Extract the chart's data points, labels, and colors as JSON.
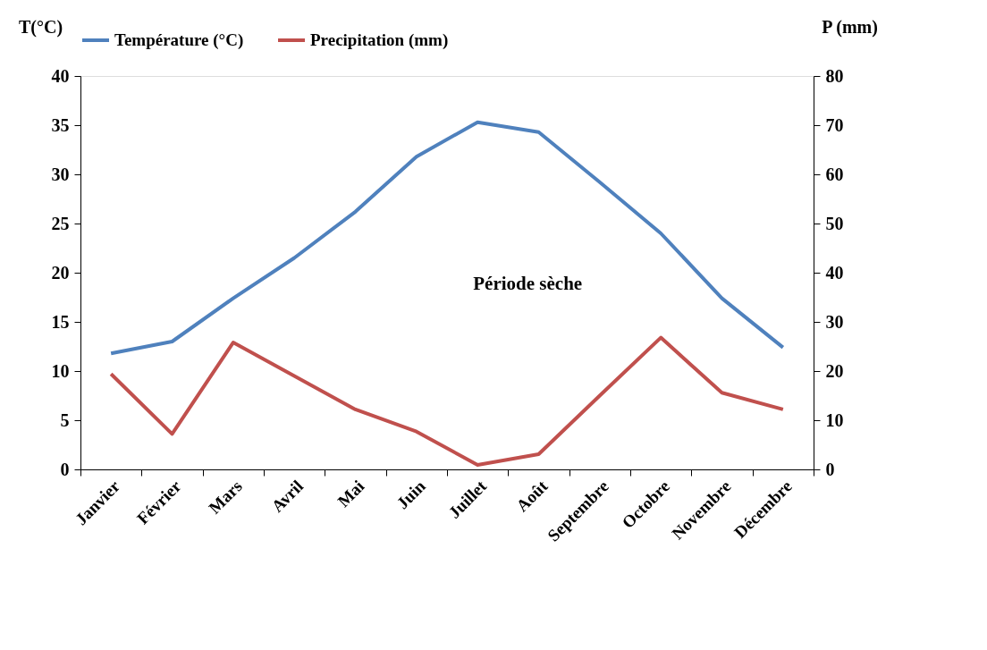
{
  "chart_data": {
    "type": "line",
    "categories": [
      "Janvier",
      "Février",
      "Mars",
      "Avril",
      "Mai",
      "Juin",
      "Juillet",
      "Août",
      "Septembre",
      "Octobre",
      "Novembre",
      "Décembre"
    ],
    "series": [
      {
        "name": "Température (°C)",
        "color": "#4f81bd",
        "values": [
          11.8,
          13.0,
          17.4,
          21.5,
          26.2,
          31.8,
          35.3,
          34.3,
          29.2,
          24.0,
          17.4,
          12.4
        ]
      },
      {
        "name": "Precipitation (mm)",
        "color": "#c0504d",
        "axis": "y2",
        "values": [
          19.4,
          7.2,
          25.8,
          19.0,
          12.2,
          7.7,
          0.9,
          3.1,
          15.0,
          26.8,
          15.6,
          12.2
        ]
      }
    ],
    "ylabel": "T(°C)",
    "y2label": "P (mm)",
    "ylim": [
      0,
      40
    ],
    "yticks": [
      0,
      5,
      10,
      15,
      20,
      25,
      30,
      35,
      40
    ],
    "y2lim": [
      0,
      80
    ],
    "y2ticks": [
      0,
      10,
      20,
      30,
      40,
      50,
      60,
      70,
      80
    ],
    "annotations": [
      "Période  sèche"
    ],
    "grid": false,
    "legend": "top",
    "marker": "none",
    "line_style": "solid"
  }
}
